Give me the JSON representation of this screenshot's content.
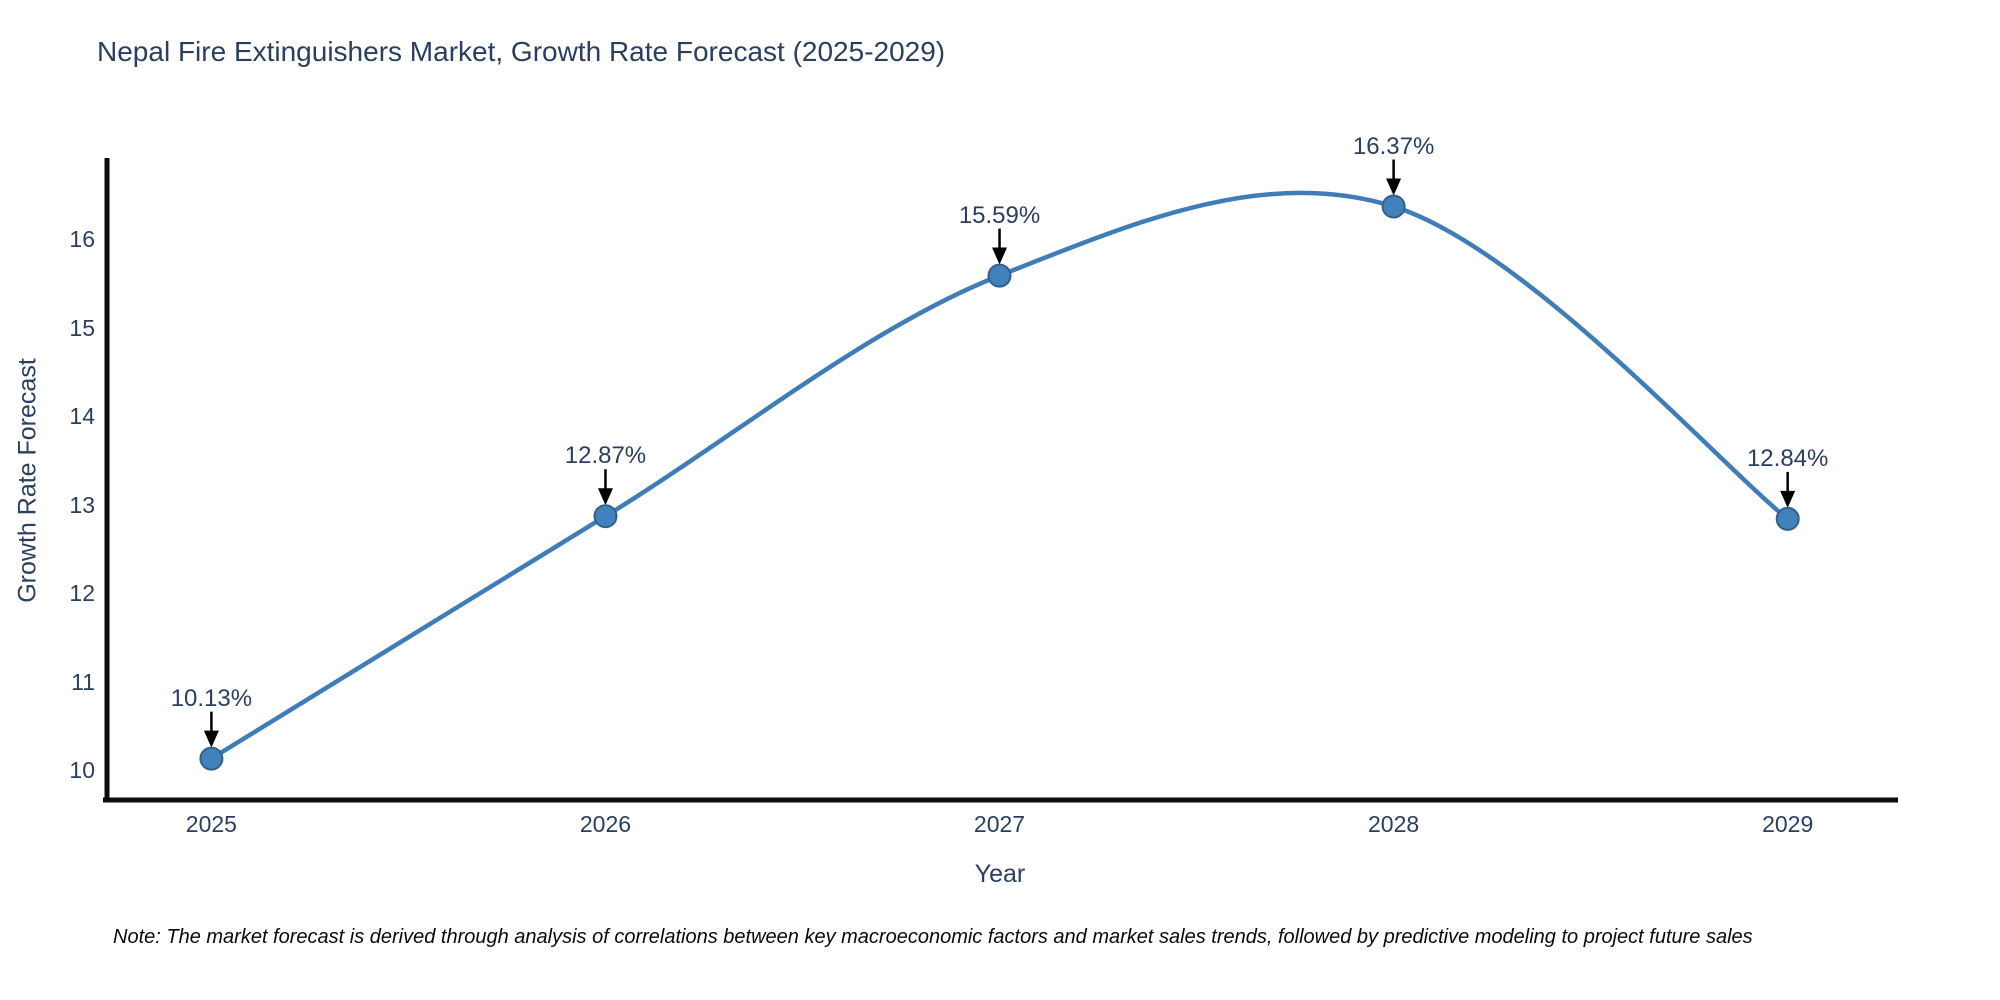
{
  "chart_data": {
    "type": "line",
    "title": "Nepal Fire Extinguishers Market, Growth Rate Forecast (2025-2029)",
    "xlabel": "Year",
    "ylabel": "Growth Rate Forecast",
    "x": [
      2025,
      2026,
      2027,
      2028,
      2029
    ],
    "y": [
      10.13,
      12.87,
      15.59,
      16.37,
      12.84
    ],
    "point_labels": [
      "10.13%",
      "12.87%",
      "15.59%",
      "16.37%",
      "12.84%"
    ],
    "x_tick_labels": [
      "2025",
      "2026",
      "2027",
      "2028",
      "2029"
    ],
    "y_ticks": [
      10,
      11,
      12,
      13,
      14,
      15,
      16
    ],
    "xlim": [
      2024.73,
      2029.28
    ],
    "ylim": [
      9.64,
      16.93
    ],
    "line_shape": "spline",
    "grid": false,
    "legend_position": "none",
    "colors": {
      "line": "#3f7db8",
      "marker_fill": "#4181bc",
      "marker_border": "#31618d",
      "axis_line": "#0d0d0d",
      "text": "#2a3f5f",
      "annotation_arrow": "#000000",
      "background": "#ffffff"
    }
  },
  "footnote": "Note: The market forecast is derived through analysis of correlations between key macroeconomic factors and market sales trends, followed by predictive modeling to project future sales"
}
